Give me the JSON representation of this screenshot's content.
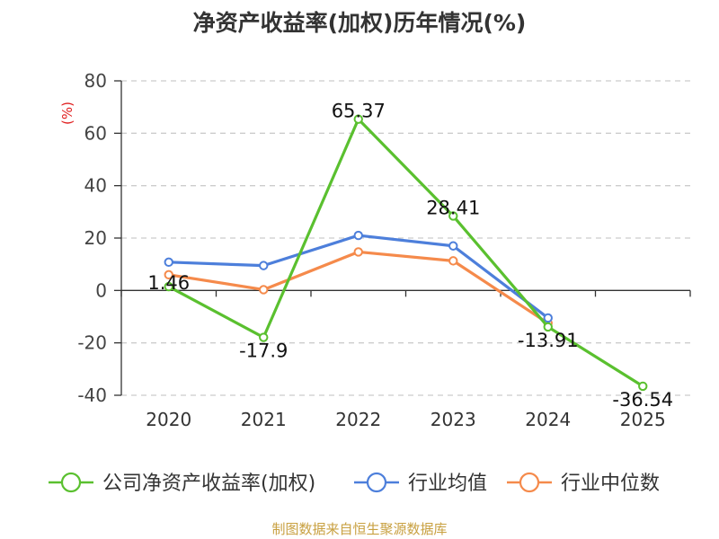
{
  "title": "净资产收益率(加权)历年情况(%)",
  "source": "制图数据来自恒生聚源数据库",
  "chart_data": {
    "type": "line",
    "title": "净资产收益率(加权)历年情况(%)",
    "ylabel": "(%)",
    "ylim": [
      -40,
      80
    ],
    "yticks": [
      80,
      60,
      40,
      20,
      0,
      -20,
      -40
    ],
    "grid": true,
    "legend_position": "bottom",
    "categories": [
      "2020",
      "2021",
      "2022",
      "2023",
      "2024",
      "2025"
    ],
    "series": [
      {
        "name": "公司净资产收益率(加权)",
        "color": "#5ac02f",
        "values": [
          1.46,
          -17.9,
          65.37,
          28.41,
          -13.91,
          -36.54
        ],
        "labels": [
          "1.46",
          "-17.9",
          "65.37",
          "28.41",
          "-13.91",
          "-36.54"
        ]
      },
      {
        "name": "行业均值",
        "color": "#4d7fdb",
        "values": [
          10.8,
          9.5,
          21.0,
          17.0,
          -10.5,
          null
        ]
      },
      {
        "name": "行业中位数",
        "color": "#f58a4b",
        "values": [
          6.0,
          0.3,
          14.7,
          11.3,
          -12.5,
          null
        ]
      }
    ]
  }
}
